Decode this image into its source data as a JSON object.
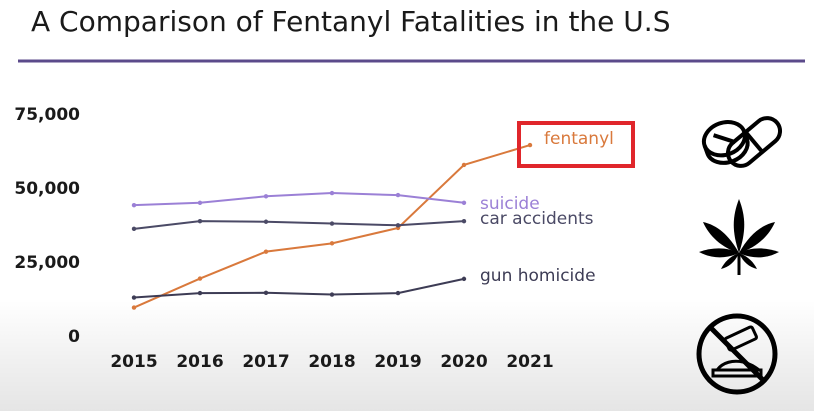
{
  "chart_data": {
    "type": "line",
    "title": "A Comparison of Fentanyl Fatalities in the U.S",
    "xlabel": "",
    "ylabel": "",
    "x": [
      "2015",
      "2016",
      "2017",
      "2018",
      "2019",
      "2020",
      "2021"
    ],
    "y_ticks": [
      "0",
      "25,000",
      "50,000",
      "75,000"
    ],
    "ylim": [
      0,
      75000
    ],
    "grid": false,
    "series": [
      {
        "name": "fentanyl",
        "color": "#d9793c",
        "highlighted": true,
        "values": [
          9600,
          19400,
          28500,
          31300,
          36500,
          57800,
          64500
        ]
      },
      {
        "name": "suicide",
        "color": "#9b80d6",
        "values": [
          44200,
          45000,
          47200,
          48300,
          47600,
          45000,
          null
        ]
      },
      {
        "name": "car accidents",
        "color": "#4b4a66",
        "values": [
          36200,
          38800,
          38600,
          38000,
          37400,
          38800,
          null
        ]
      },
      {
        "name": "gun homicide",
        "color": "#3d3c55",
        "values": [
          13000,
          14500,
          14600,
          14000,
          14500,
          19300,
          null
        ]
      }
    ]
  },
  "colors": {
    "title_rule": "#5b4a8b",
    "highlight_box": "#e0262b",
    "text": "#1a1a1a"
  },
  "icons": [
    "pills-icon",
    "cannabis-leaf-icon",
    "no-drugs-icon"
  ]
}
